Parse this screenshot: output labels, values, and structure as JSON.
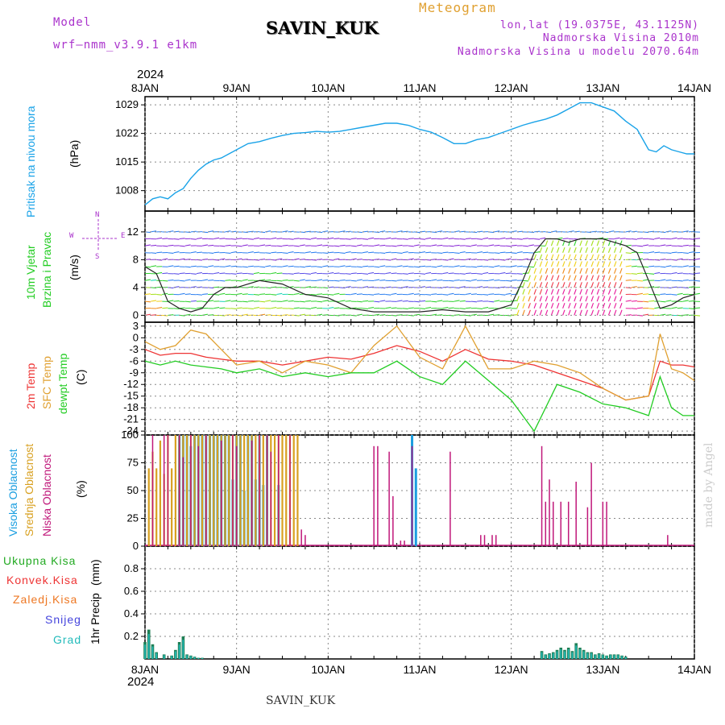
{
  "header": {
    "model_label": "Model",
    "model_name": "wrf–nmm_v3.9.1  e1km",
    "station": "SAVIN_KUK",
    "meteogram": "Meteogram",
    "lonlat": "lon,lat (19.0375E, 43.1125N)",
    "altitude": "Nadmorska Visina 2010m",
    "model_altitude": "Nadmorska Visina u modelu 2070.64m",
    "bottom_station": "SAVIN_KUK",
    "credit": "made by Angel",
    "year_top": "2024",
    "year_bottom": "2024"
  },
  "colors": {
    "pressure": "#1aa3e8",
    "temp2m": "#ee3333",
    "sfc": "#e0a030",
    "dewpt": "#22cc22",
    "high_cloud": "#1a9ee0",
    "mid_cloud": "#d8a020",
    "low_cloud": "#c0187a",
    "total_precip": "#22aa22",
    "conv_precip": "#ee3333",
    "frozen_precip": "#ee7722",
    "snow": "#4444dd",
    "hail": "#22bbbb",
    "purple_text": "#aa33cc",
    "credit": "#cccccc"
  },
  "x_axis": {
    "labels": [
      "8JAN",
      "9JAN",
      "10JAN",
      "11JAN",
      "12JAN",
      "13JAN",
      "14JAN"
    ],
    "range_hours": [
      0,
      144
    ]
  },
  "panels": {
    "pressure": {
      "label_a": "Pritisak na nivou mora",
      "unit": "(hPa)",
      "ticks": [
        "1008",
        "1015",
        "1022",
        "1029"
      ]
    },
    "wind": {
      "label_a": "10m Vjetar",
      "label_b": "Brzina i Pravac",
      "unit": "(m/s)",
      "ticks": [
        "0",
        "4",
        "8",
        "12"
      ],
      "compass": {
        "n": "N",
        "s": "S",
        "e": "E",
        "w": "W"
      }
    },
    "temperature": {
      "label_a": "2m Temp",
      "label_b": "SFC Temp",
      "label_c": "dewpt Temp",
      "unit": "(C)",
      "ticks": [
        "-24",
        "-21",
        "-18",
        "-15",
        "-12",
        "-9",
        "-6",
        "-3",
        "0",
        "3"
      ]
    },
    "clouds": {
      "label_a": "Visoka Oblacnost",
      "label_b": "Srednja Oblacnost",
      "label_c": "Niska Oblacnost",
      "unit": "(%)",
      "ticks": [
        "0",
        "25",
        "50",
        "75",
        "100"
      ]
    },
    "precip": {
      "legend": [
        "Ukupna Kisa",
        "Konvek.Kisa",
        "Zaledj.Kisa",
        "Snijeg",
        "Grad"
      ],
      "label_a": "1hr Precip",
      "unit": "(mm)",
      "ticks": [
        "0.2",
        "0.4",
        "0.6",
        "0.8"
      ]
    }
  },
  "chart_data": [
    {
      "type": "line",
      "name": "pressure",
      "ylim": [
        1003,
        1031
      ],
      "x": [
        0,
        2,
        4,
        6,
        8,
        10,
        12,
        14,
        16,
        18,
        20,
        22,
        24,
        27,
        30,
        33,
        36,
        39,
        42,
        45,
        48,
        51,
        54,
        57,
        60,
        63,
        66,
        69,
        72,
        75,
        78,
        81,
        84,
        87,
        90,
        93,
        96,
        99,
        102,
        105,
        108,
        111,
        114,
        117,
        120,
        123,
        126,
        129,
        132,
        134,
        136,
        138,
        140,
        142,
        144
      ],
      "values": [
        1004.5,
        1006,
        1006.5,
        1006,
        1007.5,
        1008.5,
        1011,
        1013,
        1014.5,
        1015.5,
        1016,
        1017,
        1018,
        1019.5,
        1020,
        1020.8,
        1021.5,
        1022,
        1022.2,
        1022.5,
        1022.3,
        1022.5,
        1023,
        1023.5,
        1024,
        1024.5,
        1024.5,
        1024,
        1023,
        1022.3,
        1021,
        1019.5,
        1019.5,
        1020.5,
        1021,
        1022,
        1023,
        1024,
        1024.8,
        1025.5,
        1026.5,
        1028,
        1029.5,
        1029.5,
        1028.5,
        1027.5,
        1025,
        1023,
        1018,
        1017.5,
        1019,
        1018,
        1017.5,
        1017,
        1017
      ]
    },
    {
      "type": "line",
      "name": "wind speed",
      "ylim": [
        -1,
        15
      ],
      "x": [
        0,
        3,
        6,
        9,
        12,
        15,
        18,
        21,
        24,
        30,
        36,
        42,
        48,
        54,
        60,
        66,
        72,
        78,
        84,
        90,
        96,
        99,
        102,
        105,
        108,
        111,
        114,
        117,
        120,
        123,
        126,
        129,
        132,
        135,
        138,
        141,
        144
      ],
      "values": [
        7,
        6,
        2,
        1,
        0.5,
        1,
        3,
        4,
        4,
        5,
        4.5,
        3,
        2.5,
        1,
        0.5,
        0.5,
        0.5,
        0.8,
        0.5,
        0.5,
        1.5,
        5,
        9,
        11,
        11,
        10.5,
        11,
        11,
        11,
        10.5,
        10,
        9,
        5,
        1,
        1.5,
        2.5,
        3
      ]
    },
    {
      "type": "line",
      "name": "temperature",
      "ylim": [
        -25,
        4
      ],
      "x": [
        0,
        4,
        8,
        12,
        16,
        20,
        24,
        30,
        36,
        42,
        48,
        54,
        60,
        66,
        72,
        78,
        84,
        90,
        96,
        102,
        108,
        114,
        120,
        126,
        132,
        135,
        138,
        141,
        144
      ],
      "series": [
        {
          "key": "temp2m",
          "values": [
            -3,
            -4.5,
            -4,
            -4,
            -5,
            -5.5,
            -6,
            -6,
            -7,
            -6,
            -5,
            -5.5,
            -4,
            -2,
            -3.5,
            -6,
            -3,
            -5.5,
            -6,
            -7,
            -9,
            -11,
            -13,
            -16,
            -15,
            -6,
            -7,
            -7,
            -7.5
          ]
        },
        {
          "key": "sfc",
          "values": [
            -1,
            -3,
            -2,
            2,
            1,
            -3,
            -7,
            -6,
            -9,
            -6,
            -7,
            -9,
            -2,
            3,
            -5,
            -8,
            3,
            -8,
            -8,
            -6,
            -7,
            -9,
            -13,
            -16,
            -15,
            1,
            -8,
            -9,
            -11
          ]
        },
        {
          "key": "dewpt",
          "values": [
            -6,
            -7,
            -6,
            -7,
            -7.5,
            -8,
            -9,
            -8,
            -10,
            -9,
            -10,
            -9,
            -9,
            -6,
            -10,
            -12,
            -6,
            -11,
            -16,
            -24,
            -12,
            -14,
            -17,
            -18,
            -20,
            -10,
            -18,
            -20,
            -20
          ]
        }
      ]
    },
    {
      "type": "bar",
      "name": "clouds",
      "ylim": [
        0,
        100
      ],
      "series": [
        {
          "key": "high_cloud",
          "x": [
            9,
            10,
            11,
            12,
            13,
            14,
            15,
            16,
            17,
            18,
            19,
            20,
            21,
            22,
            23,
            24,
            25,
            26,
            27,
            28,
            29,
            30,
            31,
            32,
            35,
            70,
            71
          ],
          "values": [
            100,
            100,
            100,
            90,
            100,
            100,
            100,
            100,
            100,
            100,
            100,
            100,
            100,
            100,
            60,
            100,
            100,
            50,
            100,
            100,
            60,
            100,
            55,
            100,
            55,
            100,
            70
          ]
        },
        {
          "key": "mid_cloud",
          "x": [
            1,
            2,
            3,
            4,
            5,
            6,
            7,
            8,
            9,
            10,
            11,
            12,
            13,
            14,
            15,
            16,
            17,
            18,
            19,
            20,
            21,
            22,
            23,
            24,
            25,
            26,
            27,
            28,
            29,
            30,
            31,
            32,
            33,
            34,
            35,
            36,
            37,
            38,
            39,
            40
          ],
          "values": [
            70,
            85,
            70,
            95,
            65,
            100,
            70,
            100,
            100,
            100,
            100,
            100,
            100,
            100,
            100,
            100,
            100,
            100,
            100,
            100,
            100,
            100,
            100,
            100,
            100,
            100,
            100,
            100,
            100,
            100,
            100,
            100,
            100,
            100,
            100,
            100,
            100,
            100,
            100,
            100
          ]
        },
        {
          "key": "low_cloud",
          "x": [
            2,
            5,
            6,
            9,
            10,
            12,
            14,
            16,
            20,
            23,
            24,
            28,
            30,
            32,
            33,
            35,
            38,
            41,
            42,
            60,
            61,
            64,
            65,
            67,
            68,
            70,
            80,
            88,
            89,
            91,
            92,
            104,
            105,
            106,
            107,
            109,
            111,
            113,
            116,
            117,
            120,
            121,
            137
          ],
          "values": [
            100,
            100,
            100,
            100,
            80,
            100,
            90,
            100,
            95,
            100,
            90,
            95,
            100,
            100,
            85,
            100,
            100,
            15,
            10,
            90,
            90,
            85,
            45,
            5,
            5,
            90,
            85,
            10,
            10,
            10,
            10,
            90,
            40,
            60,
            40,
            40,
            40,
            58,
            35,
            75,
            40,
            40,
            10
          ]
        }
      ]
    },
    {
      "type": "bar",
      "name": "precip",
      "ylim": [
        0,
        1
      ],
      "series": [
        {
          "key": "total_precip",
          "x": [
            0,
            1,
            2,
            3,
            5,
            7,
            8,
            9,
            10,
            11,
            12,
            13,
            14,
            15,
            104,
            105,
            106,
            107,
            108,
            109,
            110,
            111,
            112,
            113,
            114,
            115,
            116,
            117,
            118,
            119,
            120,
            121,
            122,
            123,
            124,
            125,
            126
          ],
          "values": [
            0.15,
            0.26,
            0.13,
            0.06,
            0.04,
            0.03,
            0.08,
            0.15,
            0.2,
            0.04,
            0.03,
            0.02,
            0.01,
            0.01,
            0.07,
            0.04,
            0.05,
            0.06,
            0.08,
            0.1,
            0.08,
            0.1,
            0.07,
            0.14,
            0.1,
            0.08,
            0.06,
            0.06,
            0.04,
            0.05,
            0.04,
            0.03,
            0.04,
            0.04,
            0.04,
            0.03,
            0.02
          ]
        }
      ]
    }
  ]
}
